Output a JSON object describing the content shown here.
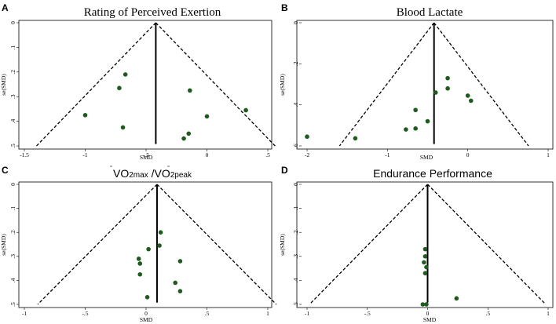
{
  "figure": {
    "panel_colors": {
      "point": "#1f5a1f",
      "line": "#000000"
    }
  },
  "chart_data": [
    {
      "panel": "A",
      "type": "scatter",
      "title": "Rating of Perceived Exertion",
      "xlabel": "SMD",
      "ylabel": "se(SMD)",
      "xlim": [
        -1.5,
        0.5
      ],
      "ylim": [
        0,
        0.5
      ],
      "y_reversed": true,
      "xticks": [
        -1.5,
        -1,
        -0.5,
        0,
        0.5
      ],
      "xtick_labels": [
        "-1.5",
        "-1",
        "-.5",
        "0",
        ".5"
      ],
      "yticks": [
        0,
        0.1,
        0.2,
        0.3,
        0.4,
        0.5
      ],
      "ytick_labels": [
        "0",
        ".1",
        ".2",
        ".3",
        ".4",
        ".5"
      ],
      "pooled_smd": -0.42,
      "points": [
        {
          "x": -1.0,
          "y": 0.375
        },
        {
          "x": -0.72,
          "y": 0.265
        },
        {
          "x": -0.67,
          "y": 0.21
        },
        {
          "x": -0.69,
          "y": 0.425
        },
        {
          "x": -0.14,
          "y": 0.275
        },
        {
          "x": -0.15,
          "y": 0.45
        },
        {
          "x": -0.19,
          "y": 0.47
        },
        {
          "x": 0.0,
          "y": 0.38
        },
        {
          "x": 0.32,
          "y": 0.355
        }
      ]
    },
    {
      "panel": "B",
      "type": "scatter",
      "title": "Blood Lactate",
      "xlabel": "SMD",
      "ylabel": "se(SMD)",
      "xlim": [
        -2,
        1
      ],
      "ylim": [
        0,
        0.6
      ],
      "y_reversed": true,
      "xticks": [
        -2,
        -1,
        0,
        1
      ],
      "xtick_labels": [
        "-2",
        "-1",
        "0",
        "1"
      ],
      "yticks": [
        0,
        0.2,
        0.4,
        0.6
      ],
      "ytick_labels": [
        "0",
        ".2",
        ".4",
        ".6"
      ],
      "pooled_smd": -0.42,
      "points": [
        {
          "x": -2.0,
          "y": 0.555
        },
        {
          "x": -1.4,
          "y": 0.563
        },
        {
          "x": -0.77,
          "y": 0.52
        },
        {
          "x": -0.65,
          "y": 0.515
        },
        {
          "x": -0.65,
          "y": 0.425
        },
        {
          "x": -0.5,
          "y": 0.48
        },
        {
          "x": -0.4,
          "y": 0.34
        },
        {
          "x": -0.25,
          "y": 0.27
        },
        {
          "x": -0.25,
          "y": 0.32
        },
        {
          "x": 0.0,
          "y": 0.355
        },
        {
          "x": 0.04,
          "y": 0.38
        }
      ]
    },
    {
      "panel": "C",
      "type": "scatter",
      "title": "VO2max /VO2peak",
      "title_parts": {
        "v1": "V",
        "o1": "O",
        "s1": "2max",
        "sep": " /",
        "v2": "V",
        "o2": "O",
        "s2": "2peak"
      },
      "xlabel": "SMD",
      "ylabel": "se(SMD)",
      "xlim": [
        -1,
        1
      ],
      "ylim": [
        0,
        0.5
      ],
      "y_reversed": true,
      "xticks": [
        -1,
        -0.5,
        0,
        0.5,
        1
      ],
      "xtick_labels": [
        "-1",
        "-.5",
        "0",
        ".5",
        "1"
      ],
      "yticks": [
        0,
        0.1,
        0.2,
        0.3,
        0.4,
        0.5
      ],
      "ytick_labels": [
        "0",
        ".1",
        ".2",
        ".3",
        ".4",
        ".5"
      ],
      "pooled_smd": 0.09,
      "points": [
        {
          "x": 0.12,
          "y": 0.2
        },
        {
          "x": 0.11,
          "y": 0.255
        },
        {
          "x": 0.02,
          "y": 0.27
        },
        {
          "x": -0.06,
          "y": 0.31
        },
        {
          "x": -0.05,
          "y": 0.33
        },
        {
          "x": -0.05,
          "y": 0.375
        },
        {
          "x": 0.28,
          "y": 0.32
        },
        {
          "x": 0.24,
          "y": 0.41
        },
        {
          "x": 0.28,
          "y": 0.445
        },
        {
          "x": 0.01,
          "y": 0.47
        }
      ]
    },
    {
      "panel": "D",
      "type": "scatter",
      "title": "Endurance Performance",
      "xlabel": "SMD",
      "ylabel": "se(SMD)",
      "xlim": [
        -1,
        1
      ],
      "ylim": [
        0,
        0.5
      ],
      "y_reversed": true,
      "xticks": [
        -1,
        -0.5,
        0,
        0.5,
        1
      ],
      "xtick_labels": [
        "-1",
        "-.5",
        "0",
        ".5",
        "1"
      ],
      "yticks": [
        0,
        0.1,
        0.2,
        0.3,
        0.4,
        0.5
      ],
      "ytick_labels": [
        "0",
        ".1",
        ".2",
        ".3",
        ".4",
        ".5"
      ],
      "pooled_smd": 0.0,
      "points": [
        {
          "x": -0.02,
          "y": 0.27
        },
        {
          "x": -0.02,
          "y": 0.3
        },
        {
          "x": -0.03,
          "y": 0.325
        },
        {
          "x": -0.01,
          "y": 0.345
        },
        {
          "x": -0.02,
          "y": 0.37
        },
        {
          "x": -0.04,
          "y": 0.5
        },
        {
          "x": -0.01,
          "y": 0.5
        },
        {
          "x": 0.24,
          "y": 0.475
        }
      ]
    }
  ]
}
